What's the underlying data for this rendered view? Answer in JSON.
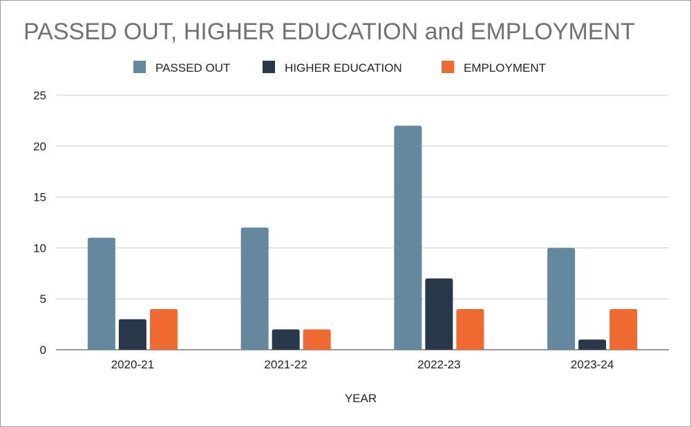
{
  "chart_data": {
    "type": "bar",
    "title": "PASSED OUT, HIGHER EDUCATION and EMPLOYMENT",
    "xlabel": "YEAR",
    "ylabel": "",
    "categories": [
      "2020-21",
      "2021-22",
      "2022-23",
      "2023-24"
    ],
    "series": [
      {
        "name": "PASSED OUT",
        "color": "#64889e",
        "values": [
          11,
          12,
          22,
          10
        ]
      },
      {
        "name": "HIGHER EDUCATION",
        "color": "#283848",
        "values": [
          3,
          2,
          7,
          1
        ]
      },
      {
        "name": "EMPLOYMENT",
        "color": "#ee6a30",
        "values": [
          4,
          2,
          4,
          4
        ]
      }
    ],
    "ylim": [
      0,
      25
    ],
    "yticks": [
      0,
      5,
      10,
      15,
      20,
      25
    ],
    "grid": true,
    "legend": "top"
  }
}
